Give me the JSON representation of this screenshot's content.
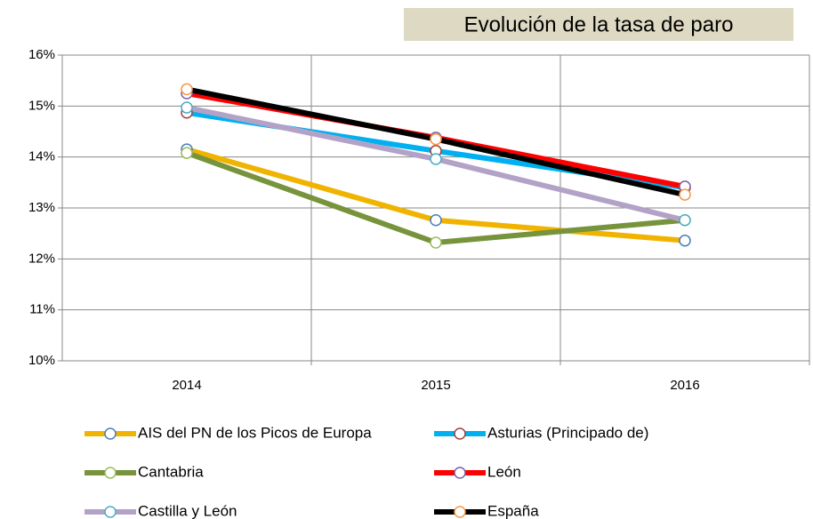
{
  "chart_data": {
    "type": "line",
    "title": "Evolución de la tasa de paro",
    "categories": [
      "2014",
      "2015",
      "2016"
    ],
    "ylim": [
      10,
      16
    ],
    "yticks": [
      {
        "value": 10,
        "label": "10%"
      },
      {
        "value": 11,
        "label": "11%"
      },
      {
        "value": 12,
        "label": "12%"
      },
      {
        "value": 13,
        "label": "13%"
      },
      {
        "value": 14,
        "label": "14%"
      },
      {
        "value": 15,
        "label": "15%"
      },
      {
        "value": 16,
        "label": "16%"
      }
    ],
    "grid": true,
    "legend": "bottom",
    "series": [
      {
        "name": "AIS del PN de los Picos de Europa",
        "color": "#f0b400",
        "marker_color": "#4a7ebb",
        "values": [
          14.15,
          12.76,
          12.36
        ]
      },
      {
        "name": "Asturias (Principado de)",
        "color": "#00b0f0",
        "marker_color": "#a0403e",
        "values": [
          14.87,
          14.12,
          13.4
        ]
      },
      {
        "name": "Cantabria",
        "color": "#77933c",
        "marker_color": "#9bbb59",
        "values": [
          14.08,
          12.32,
          12.76
        ]
      },
      {
        "name": "León",
        "color": "#ff0000",
        "marker_color": "#7d5fa0",
        "values": [
          15.25,
          14.38,
          13.42
        ]
      },
      {
        "name": "Castilla y León",
        "color": "#b3a2c7",
        "marker_color": "#4bacc6",
        "values": [
          14.97,
          13.96,
          12.76
        ]
      },
      {
        "name": "España",
        "color": "#000000",
        "marker_color": "#f79646",
        "values": [
          15.33,
          14.35,
          13.26
        ]
      }
    ]
  }
}
